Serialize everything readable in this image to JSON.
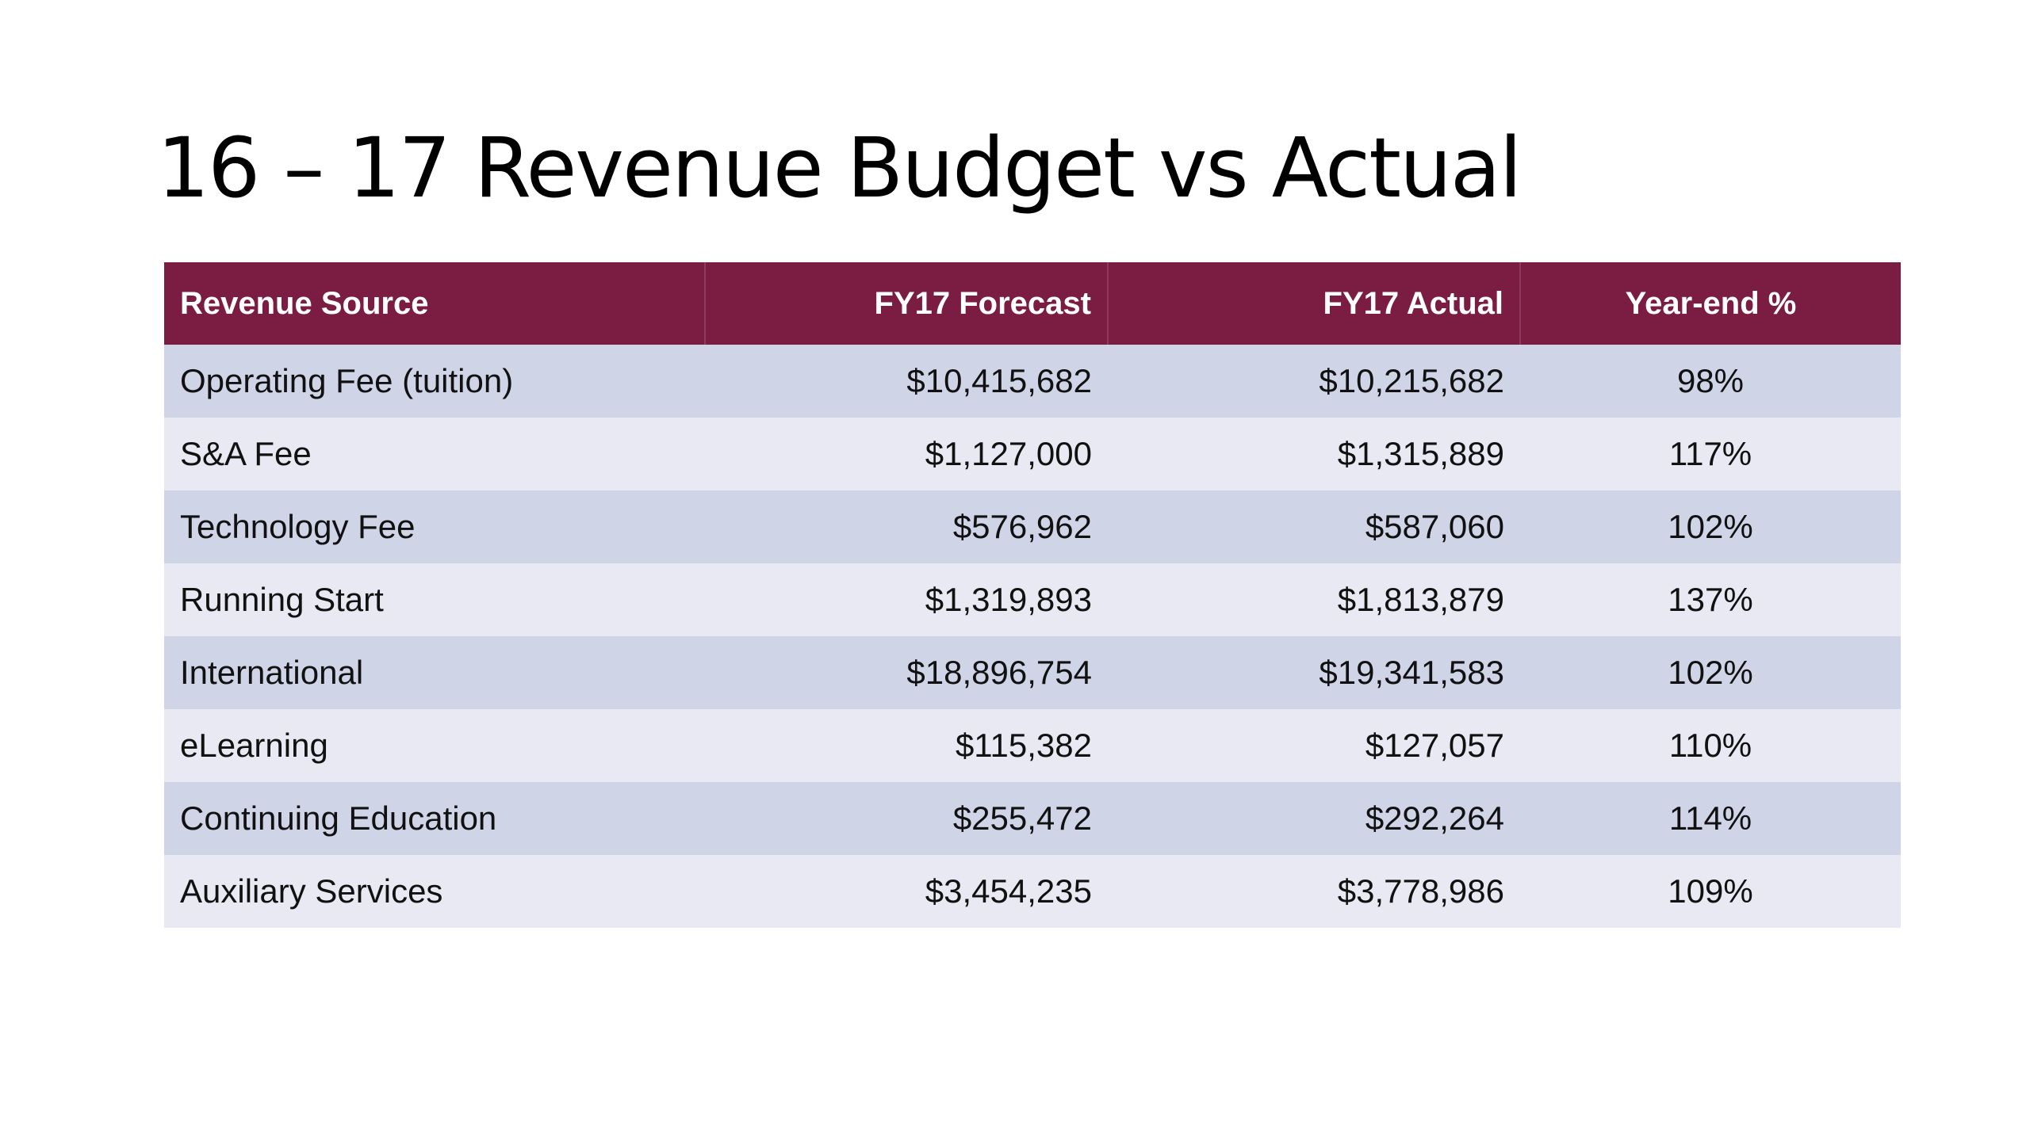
{
  "slide": {
    "title": "16 – 17 Revenue Budget vs Actual"
  },
  "table": {
    "columns": [
      "Revenue Source",
      "FY17 Forecast",
      "FY17 Actual",
      "Year-end %"
    ],
    "rows": [
      [
        "Operating Fee (tuition)",
        "$10,415,682",
        "$10,215,682",
        "98%"
      ],
      [
        "S&A Fee",
        "$1,127,000",
        "$1,315,889",
        "117%"
      ],
      [
        "Technology Fee",
        "$576,962",
        "$587,060",
        "102%"
      ],
      [
        "Running Start",
        "$1,319,893",
        "$1,813,879",
        "137%"
      ],
      [
        "International",
        "$18,896,754",
        "$19,341,583",
        "102%"
      ],
      [
        "eLearning",
        "$115,382",
        "$127,057",
        "110%"
      ],
      [
        "Continuing Education",
        "$255,472",
        "$292,264",
        "114%"
      ],
      [
        "Auxiliary Services",
        "$3,454,235",
        "$3,778,986",
        "109%"
      ]
    ]
  },
  "colors": {
    "header_bg": "#7b1c42",
    "header_text": "#ffffff",
    "row_odd_bg": "#cfd4e7",
    "row_even_bg": "#e8e9f2"
  }
}
